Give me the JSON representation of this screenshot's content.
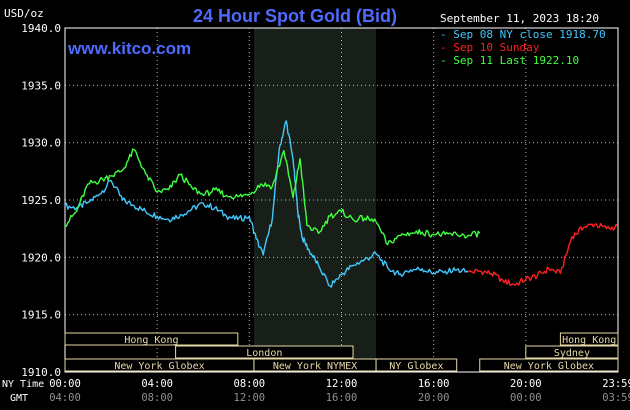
{
  "title": "24 Hour Spot Gold (Bid)",
  "watermark": "www.kitco.com",
  "date_label": "September 11, 2023 18:20",
  "y_unit": "USD/oz",
  "axis_labels": {
    "ny_time": "NY Time",
    "gmt": "GMT"
  },
  "colors": {
    "sep08": "#40c8ff",
    "sep10": "#ff2020",
    "sep11": "#40ff40",
    "title": "#4f6bff",
    "grid": "#ffffff"
  },
  "chart_data": {
    "type": "line",
    "title": "24 Hour Spot Gold (Bid)",
    "ylabel": "USD/oz",
    "ylim": [
      1910,
      1940
    ],
    "y_ticks": [
      "1940.0",
      "1935.0",
      "1930.0",
      "1925.0",
      "1920.0",
      "1915.0",
      "1910.0"
    ],
    "x_ticks_ny": [
      "00:00",
      "04:00",
      "08:00",
      "12:00",
      "16:00",
      "20:00",
      "23:59"
    ],
    "x_ticks_gmt": [
      "04:00",
      "08:00",
      "12:00",
      "16:00",
      "20:00",
      "00:00",
      "03:59"
    ],
    "x_range_hours": [
      0,
      24
    ],
    "grid": true,
    "legend_position": "top-right",
    "series": [
      {
        "name": "Sep 08 NY close 1918.70",
        "x": [
          0,
          0.5,
          1.0,
          1.5,
          2.0,
          2.5,
          3.0,
          3.5,
          4.0,
          4.5,
          5.0,
          5.5,
          6.0,
          6.5,
          7.0,
          7.5,
          8.0,
          8.3,
          8.6,
          9.0,
          9.3,
          9.6,
          9.9,
          10.1,
          10.3,
          10.6,
          11.0,
          11.5,
          12.0,
          12.5,
          13.0,
          13.5,
          14.0,
          14.5,
          15.0,
          15.5,
          16.0,
          16.5,
          17.0,
          17.5
        ],
        "values": [
          1924.5,
          1924.3,
          1924.8,
          1925.5,
          1926.7,
          1925.0,
          1924.5,
          1924.0,
          1923.6,
          1923.3,
          1923.7,
          1924.2,
          1924.7,
          1924.3,
          1923.6,
          1923.3,
          1923.6,
          1921.6,
          1920.2,
          1923.4,
          1929.5,
          1931.9,
          1928.5,
          1924.0,
          1921.7,
          1920.6,
          1919.3,
          1917.5,
          1918.5,
          1919.3,
          1919.8,
          1920.3,
          1919.1,
          1918.5,
          1918.9,
          1919.0,
          1918.6,
          1918.8,
          1918.9,
          1918.7
        ]
      },
      {
        "name": "Sep 10 Sunday",
        "x": [
          17.5,
          18.0,
          18.5,
          19.0,
          19.5,
          20.0,
          20.5,
          21.0,
          21.5,
          22.0,
          22.5,
          23.0,
          23.5,
          23.98
        ],
        "values": [
          1918.7,
          1918.8,
          1918.6,
          1918.0,
          1917.6,
          1918.1,
          1918.4,
          1919.0,
          1918.6,
          1921.8,
          1922.6,
          1922.9,
          1922.5,
          1922.7
        ]
      },
      {
        "name": "Sep 11 Last 1922.10",
        "x": [
          0,
          0.5,
          1.0,
          1.5,
          2.0,
          2.5,
          3.0,
          3.5,
          4.0,
          4.5,
          5.0,
          5.5,
          6.0,
          6.5,
          7.0,
          7.5,
          8.0,
          8.5,
          9.0,
          9.5,
          9.9,
          10.2,
          10.5,
          11.0,
          11.5,
          12.0,
          12.5,
          13.0,
          13.5,
          14.0,
          14.5,
          15.0,
          15.5,
          16.0,
          16.5,
          17.0,
          17.5,
          18.0
        ],
        "values": [
          1922.8,
          1924.0,
          1926.4,
          1926.7,
          1927.1,
          1927.6,
          1929.4,
          1927.3,
          1925.7,
          1925.9,
          1927.2,
          1926.1,
          1925.4,
          1925.9,
          1925.4,
          1925.3,
          1925.5,
          1926.4,
          1926.2,
          1929.3,
          1925.2,
          1928.6,
          1922.8,
          1922.1,
          1923.6,
          1924.0,
          1923.3,
          1923.4,
          1923.1,
          1921.1,
          1921.9,
          1922.1,
          1922.2,
          1922.0,
          1922.0,
          1922.0,
          1921.9,
          1922.1
        ]
      }
    ],
    "markets": [
      {
        "name": "Hong Kong",
        "start": 0.0,
        "end": 7.5,
        "row": 0
      },
      {
        "name": "Hong Kong",
        "start": 21.5,
        "end": 24.0,
        "row": 0
      },
      {
        "name": "London",
        "start": 4.8,
        "end": 12.5,
        "row": 1
      },
      {
        "name": "Sydney",
        "start": 20.0,
        "end": 24.0,
        "row": 1
      },
      {
        "name": "New York Globex",
        "start": 0.0,
        "end": 8.2,
        "row": 2
      },
      {
        "name": "New York NYMEX",
        "start": 8.2,
        "end": 13.5,
        "row": 2
      },
      {
        "name": "NY Globex",
        "start": 13.5,
        "end": 17.0,
        "row": 2
      },
      {
        "name": "New York Globex",
        "start": 18.0,
        "end": 24.0,
        "row": 2
      }
    ],
    "highlight_hours": [
      8.2,
      13.5
    ]
  }
}
